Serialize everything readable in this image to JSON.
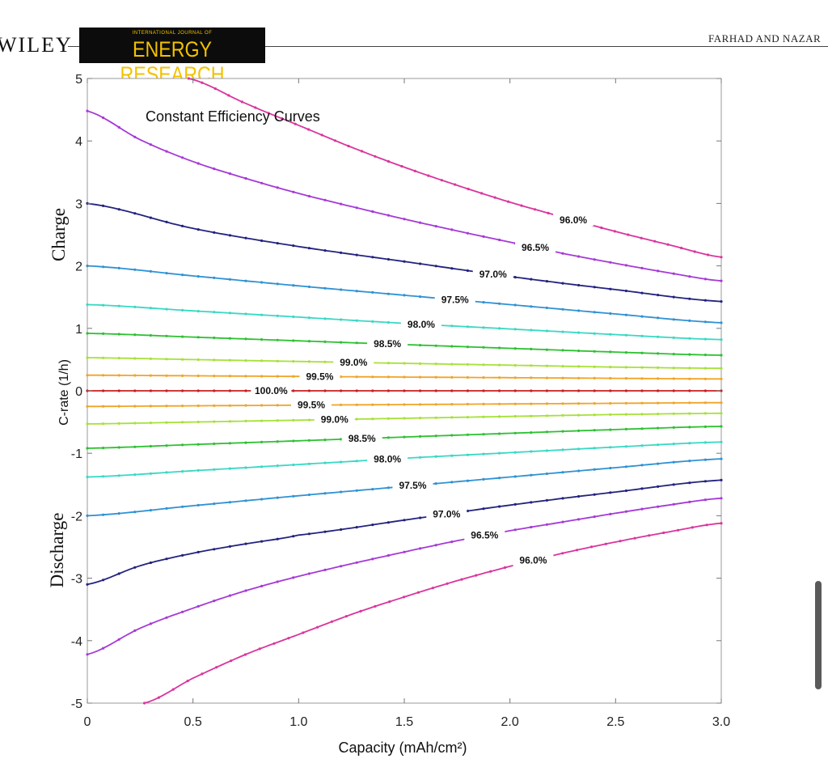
{
  "header": {
    "publisher": "WILEY",
    "journal_small": "INTERNATIONAL JOURNAL OF",
    "journal_name": "ENERGY RESEARCH",
    "authors": "FARHAD AND NAZAR"
  },
  "colors": {
    "96.0": "#d9359c",
    "96.5": "#a53ad6",
    "97.0": "#23237f",
    "97.5": "#2f92d4",
    "98.0": "#3ad8c3",
    "98.5": "#2ec032",
    "99.0": "#a8e03a",
    "99.5": "#f0a428",
    "100.0": "#c81e1e"
  },
  "chart_data": {
    "type": "line",
    "title": "Constant Efficiency Curves",
    "xlabel": "Capacity (mAh/cm²)",
    "ylabel": "C-rate (1/h)",
    "ylabel_top": "Charge",
    "ylabel_bottom": "Discharge",
    "xlim": [
      0,
      3.0
    ],
    "ylim": [
      -5,
      5
    ],
    "xticks": [
      "0",
      "0.5",
      "1.0",
      "1.5",
      "2.0",
      "2.5",
      "3.0"
    ],
    "yticks": [
      "5",
      "4",
      "3",
      "2",
      "1",
      "0",
      "-1",
      "-2",
      "-3",
      "-4",
      "-5"
    ],
    "grid": false,
    "series": [
      {
        "name": "96.0%",
        "branch": "charge",
        "x": [
          0.48,
          0.75,
          1.0,
          1.25,
          1.5,
          1.75,
          2.0,
          2.25,
          2.5,
          2.75,
          3.0
        ],
        "y": [
          5.0,
          4.6,
          4.25,
          3.9,
          3.58,
          3.29,
          3.02,
          2.78,
          2.55,
          2.34,
          2.14
        ],
        "label_at": 2.3
      },
      {
        "name": "96.5%",
        "branch": "charge",
        "x": [
          0.0,
          0.25,
          0.5,
          0.75,
          1.0,
          1.25,
          1.5,
          1.75,
          2.0,
          2.25,
          2.5,
          2.75,
          3.0
        ],
        "y": [
          4.48,
          4.02,
          3.67,
          3.4,
          3.16,
          2.95,
          2.75,
          2.56,
          2.38,
          2.2,
          2.04,
          1.89,
          1.76
        ],
        "label_at": 2.12
      },
      {
        "name": "97.0%",
        "branch": "charge",
        "x": [
          0.0,
          0.5,
          1.0,
          1.5,
          2.0,
          2.5,
          3.0
        ],
        "y": [
          3.0,
          2.6,
          2.31,
          2.07,
          1.83,
          1.62,
          1.43
        ],
        "label_at": 1.92
      },
      {
        "name": "97.5%",
        "branch": "charge",
        "x": [
          0.0,
          0.5,
          1.0,
          1.5,
          2.0,
          2.5,
          3.0
        ],
        "y": [
          2.0,
          1.84,
          1.68,
          1.53,
          1.38,
          1.23,
          1.09
        ],
        "label_at": 1.74
      },
      {
        "name": "98.0%",
        "branch": "charge",
        "x": [
          0.0,
          0.5,
          1.0,
          1.5,
          2.0,
          2.5,
          3.0
        ],
        "y": [
          1.38,
          1.28,
          1.18,
          1.08,
          0.99,
          0.9,
          0.82
        ],
        "label_at": 1.58
      },
      {
        "name": "98.5%",
        "branch": "charge",
        "x": [
          0.0,
          0.5,
          1.0,
          1.5,
          2.0,
          2.5,
          3.0
        ],
        "y": [
          0.92,
          0.86,
          0.8,
          0.74,
          0.68,
          0.62,
          0.57
        ],
        "label_at": 1.42
      },
      {
        "name": "99.0%",
        "branch": "charge",
        "x": [
          0.0,
          0.5,
          1.0,
          1.5,
          2.0,
          2.5,
          3.0
        ],
        "y": [
          0.53,
          0.5,
          0.47,
          0.44,
          0.41,
          0.38,
          0.36
        ],
        "label_at": 1.26
      },
      {
        "name": "99.5%",
        "branch": "charge",
        "x": [
          0.0,
          0.5,
          1.0,
          1.5,
          2.0,
          2.5,
          3.0
        ],
        "y": [
          0.25,
          0.24,
          0.23,
          0.22,
          0.21,
          0.2,
          0.19
        ],
        "label_at": 1.1
      },
      {
        "name": "100.0%",
        "branch": "zero",
        "x": [
          0.0,
          3.0
        ],
        "y": [
          0.0,
          0.0
        ],
        "label_at": 0.87
      },
      {
        "name": "99.5%",
        "branch": "discharge",
        "x": [
          0.0,
          0.5,
          1.0,
          1.5,
          2.0,
          2.5,
          3.0
        ],
        "y": [
          -0.25,
          -0.24,
          -0.23,
          -0.22,
          -0.21,
          -0.2,
          -0.19
        ],
        "label_at": 1.06
      },
      {
        "name": "99.0%",
        "branch": "discharge",
        "x": [
          0.0,
          0.5,
          1.0,
          1.5,
          2.0,
          2.5,
          3.0
        ],
        "y": [
          -0.53,
          -0.5,
          -0.47,
          -0.44,
          -0.41,
          -0.38,
          -0.36
        ],
        "label_at": 1.17
      },
      {
        "name": "98.5%",
        "branch": "discharge",
        "x": [
          0.0,
          0.5,
          1.0,
          1.5,
          2.0,
          2.5,
          3.0
        ],
        "y": [
          -0.92,
          -0.86,
          -0.8,
          -0.74,
          -0.68,
          -0.62,
          -0.57
        ],
        "label_at": 1.3
      },
      {
        "name": "98.0%",
        "branch": "discharge",
        "x": [
          0.0,
          0.5,
          1.0,
          1.5,
          2.0,
          2.5,
          3.0
        ],
        "y": [
          -1.38,
          -1.28,
          -1.18,
          -1.08,
          -0.99,
          -0.9,
          -0.82
        ],
        "label_at": 1.42
      },
      {
        "name": "97.5%",
        "branch": "discharge",
        "x": [
          0.0,
          0.5,
          1.0,
          1.5,
          2.0,
          2.5,
          3.0
        ],
        "y": [
          -2.0,
          -1.84,
          -1.68,
          -1.53,
          -1.38,
          -1.23,
          -1.09
        ],
        "label_at": 1.54
      },
      {
        "name": "97.0%",
        "branch": "discharge",
        "x": [
          0.0,
          0.25,
          0.5,
          0.75,
          1.0,
          1.5,
          2.0,
          2.5,
          3.0
        ],
        "y": [
          -3.1,
          -2.8,
          -2.6,
          -2.45,
          -2.31,
          -2.07,
          -1.83,
          -1.62,
          -1.43
        ],
        "label_at": 1.7
      },
      {
        "name": "96.5%",
        "branch": "discharge",
        "x": [
          0.0,
          0.25,
          0.5,
          0.75,
          1.0,
          1.25,
          1.5,
          1.75,
          2.0,
          2.25,
          2.5,
          2.75,
          3.0
        ],
        "y": [
          -4.22,
          -3.8,
          -3.48,
          -3.2,
          -2.97,
          -2.77,
          -2.58,
          -2.4,
          -2.24,
          -2.1,
          -1.96,
          -1.83,
          -1.72
        ],
        "label_at": 1.88
      },
      {
        "name": "96.0%",
        "branch": "discharge",
        "x": [
          0.27,
          0.5,
          0.75,
          1.0,
          1.25,
          1.5,
          1.75,
          2.0,
          2.25,
          2.5,
          2.75,
          3.0
        ],
        "y": [
          -5.0,
          -4.6,
          -4.22,
          -3.9,
          -3.58,
          -3.3,
          -3.04,
          -2.81,
          -2.6,
          -2.42,
          -2.26,
          -2.12
        ],
        "label_at": 2.11
      }
    ]
  }
}
